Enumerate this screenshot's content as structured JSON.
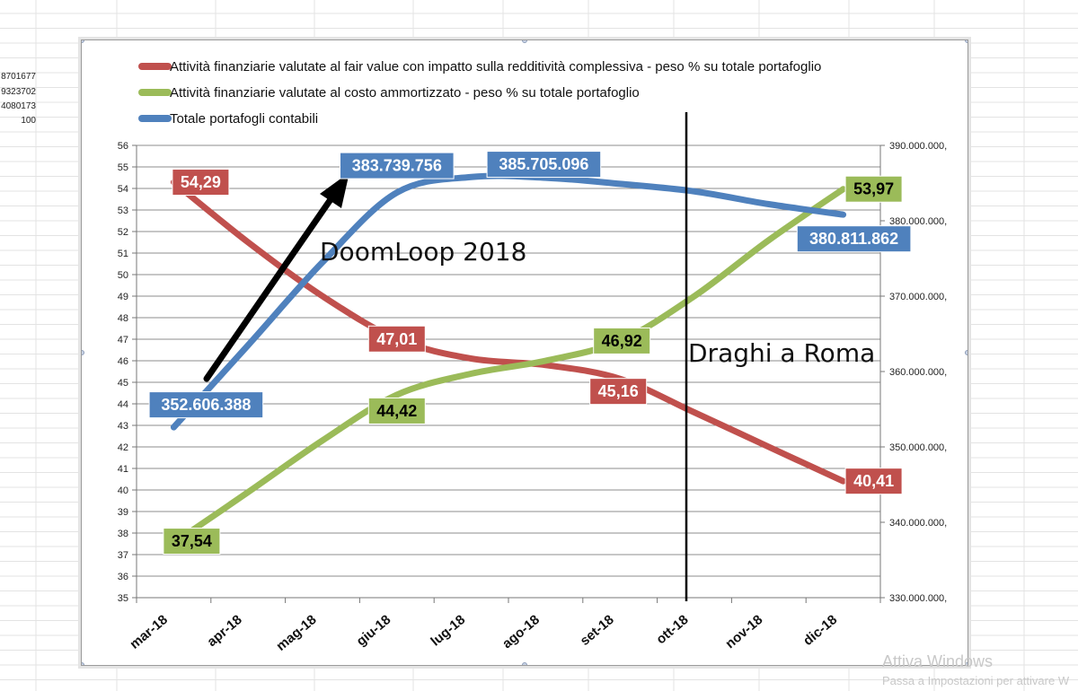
{
  "spreadsheet": {
    "cell_values": [
      "8701677",
      "9323702",
      "4080173",
      "100"
    ]
  },
  "chart_data": {
    "type": "line",
    "categories": [
      "mar-18",
      "apr-18",
      "mag-18",
      "giu-18",
      "lug-18",
      "ago-18",
      "set-18",
      "ott-18",
      "nov-18",
      "dic-18"
    ],
    "title": "",
    "xlabel": "",
    "ylabel": "",
    "ylim": [
      35,
      56
    ],
    "y2lim": [
      330000000,
      390000000
    ],
    "y_ticks": [
      "35",
      "36",
      "37",
      "38",
      "39",
      "40",
      "41",
      "42",
      "43",
      "44",
      "45",
      "46",
      "47",
      "48",
      "49",
      "50",
      "51",
      "52",
      "53",
      "54",
      "55",
      "56"
    ],
    "y2_ticks": [
      "330.000.000,",
      "340.000.000,",
      "350.000.000,",
      "360.000.000,",
      "370.000.000,",
      "380.000.000,",
      "390.000.000,"
    ],
    "grid": true,
    "legend_position": "top",
    "series": [
      {
        "name": "Attività finanziarie valutate al fair value con impatto sulla redditività  complessiva - peso % su totale portafoglio",
        "color": "#c0504d",
        "axis": "left",
        "values": [
          54.29,
          51.5,
          49.0,
          47.01,
          46.1,
          45.8,
          45.16,
          43.6,
          42.0,
          40.41
        ],
        "labels": [
          {
            "index": 0,
            "text": "54,29"
          },
          {
            "index": 3,
            "text": "47,01"
          },
          {
            "index": 6,
            "text": "45,16"
          },
          {
            "index": 9,
            "text": "40,41"
          }
        ]
      },
      {
        "name": "Attività finanziarie valutate al costo ammortizzato -  peso % su totale portafoglio",
        "color": "#9bbb59",
        "axis": "left",
        "values": [
          37.54,
          39.9,
          42.3,
          44.42,
          45.4,
          46.0,
          46.92,
          49.0,
          51.6,
          53.97
        ],
        "labels": [
          {
            "index": 0,
            "text": "37,54"
          },
          {
            "index": 3,
            "text": "44,42"
          },
          {
            "index": 6,
            "text": "46,92"
          },
          {
            "index": 9,
            "text": "53,97"
          }
        ]
      },
      {
        "name": "Totale portafogli contabili",
        "color": "#4f81bd",
        "axis": "right",
        "values": [
          352606388,
          363500000,
          374500000,
          383739756,
          385800000,
          385705096,
          384900000,
          383900000,
          382200000,
          380811862
        ],
        "labels": [
          {
            "index": 0,
            "text": "352.606.388"
          },
          {
            "index": 3,
            "text": "383.739.756"
          },
          {
            "index": 5,
            "text": "385.705.096"
          },
          {
            "index": 9,
            "text": "380.811.862"
          }
        ]
      }
    ],
    "annotations": [
      {
        "text": "DoomLoop 2018"
      },
      {
        "text": "Draghi a Roma"
      }
    ]
  },
  "watermark": {
    "title": "Attiva Windows",
    "subtitle": "Passa a Impostazioni per attivare W"
  }
}
